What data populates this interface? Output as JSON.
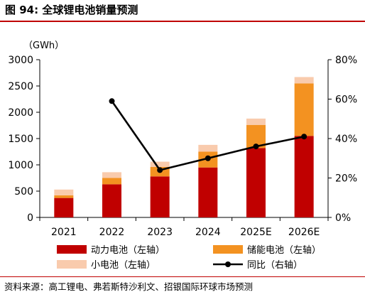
{
  "figure": {
    "title": "图 94: 全球锂电池销量预测",
    "source": "资料来源：高工锂电、弗若斯特沙利文、招银国际环球市场预测"
  },
  "chart_data": {
    "type": "bar",
    "stacked": true,
    "unit_label": "（GWh）",
    "categories": [
      "2021",
      "2022",
      "2023",
      "2024",
      "2025E",
      "2026E"
    ],
    "series": [
      {
        "name": "动力电池（左轴）",
        "type": "bar",
        "axis": "left",
        "color": "#c00000",
        "values": [
          370,
          630,
          780,
          950,
          1320,
          1550
        ]
      },
      {
        "name": "储能电池（左轴）",
        "type": "bar",
        "axis": "left",
        "color": "#f39221",
        "values": [
          50,
          120,
          180,
          300,
          440,
          1000
        ]
      },
      {
        "name": "小电池（左轴）",
        "type": "bar",
        "axis": "left",
        "color": "#f9cbad",
        "values": [
          110,
          110,
          100,
          130,
          120,
          120
        ]
      },
      {
        "name": "同比（右轴）",
        "type": "line",
        "axis": "right",
        "color": "#000000",
        "values": [
          null,
          0.59,
          0.24,
          0.3,
          0.36,
          0.41
        ]
      }
    ],
    "y_left": {
      "min": 0,
      "max": 3000,
      "step": 500,
      "tick_labels": [
        "0",
        "500",
        "1000",
        "1500",
        "2000",
        "2500",
        "3000"
      ]
    },
    "y_right": {
      "min": 0,
      "max": 0.8,
      "step": 0.2,
      "tick_labels": [
        "0%",
        "20%",
        "40%",
        "60%",
        "80%"
      ]
    },
    "grid": false,
    "legend_position": "bottom"
  }
}
